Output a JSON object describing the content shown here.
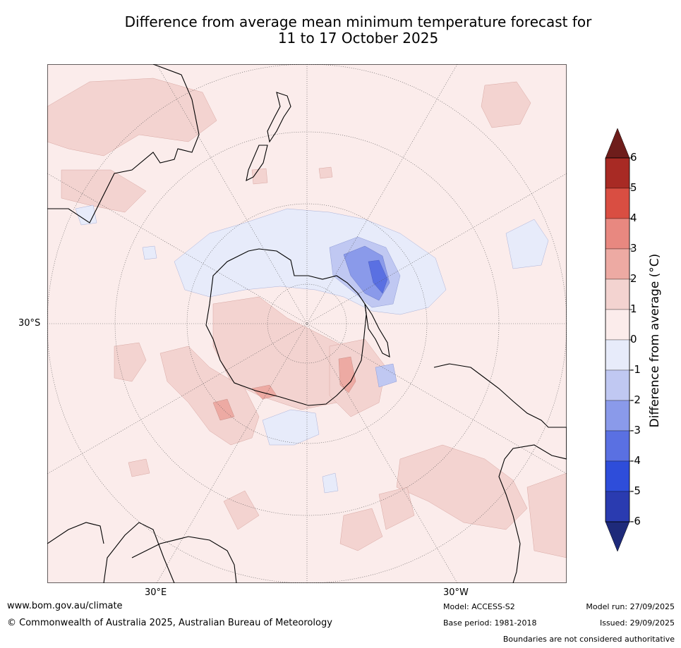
{
  "title": {
    "line1": "Difference from average mean minimum temperature forecast for",
    "line2": "11 to 17 October 2025"
  },
  "map": {
    "lat_label": "30°S",
    "lon_labels": {
      "east": "30°E",
      "west": "30°W"
    }
  },
  "colorbar": {
    "label": "Difference from average (°C)",
    "ticks": [
      "6",
      "5",
      "4",
      "3",
      "2",
      "1",
      "0",
      "-1",
      "-2",
      "-3",
      "-4",
      "-5",
      "-6"
    ],
    "bins_top_to_bottom": [
      "#a82a24",
      "#d94e42",
      "#e88880",
      "#edaaa3",
      "#f3d3d0",
      "#fbeceb",
      "#e7ebfa",
      "#c0c8f2",
      "#8a9aea",
      "#5a70e2",
      "#2e4dda",
      "#2a3bb0"
    ],
    "extend_high_color": "#6e1d1b",
    "extend_low_color": "#1e2a7a"
  },
  "colors": {
    "ocean_base": "#fbeceb",
    "warm_light": "#f3d3d0",
    "warm_mid": "#edaaa3",
    "cool_light": "#e7ebfa",
    "cool_mid": "#c0c8f2",
    "cool_strong": "#8a9aea",
    "cool_core": "#5a70e2"
  },
  "footer": {
    "website": "www.bom.gov.au/climate",
    "copyright": "© Commonwealth of Australia 2025, Australian Bureau of Meteorology",
    "model": "Model: ACCESS-S2",
    "base_period": "Base period: 1981-2018",
    "model_run": "Model run: 27/09/2025",
    "issued": "Issued: 29/09/2025",
    "disclaimer": "Boundaries are not considered authoritative"
  }
}
